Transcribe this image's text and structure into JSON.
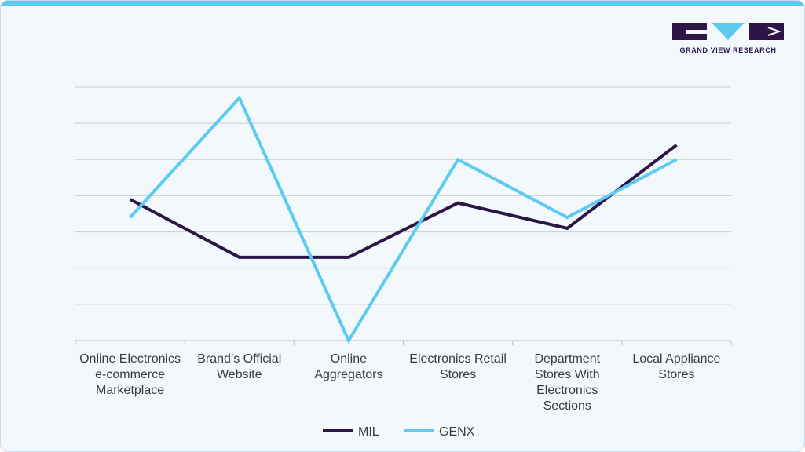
{
  "brand": {
    "name": "GRAND VIEW RESEARCH",
    "colors": {
      "accent": "#5ccbf2",
      "dark": "#2a1a45"
    }
  },
  "chart_data": {
    "type": "line",
    "title": "",
    "xlabel": "",
    "ylabel": "",
    "ylim": [
      0,
      7
    ],
    "grid": true,
    "legend_position": "bottom-center",
    "categories": [
      [
        "Online Electronics",
        "e-commerce",
        "Marketplace"
      ],
      [
        "Brand’s Official",
        "Website"
      ],
      [
        "Online",
        "Aggregators"
      ],
      [
        "Electronics Retail",
        "Stores"
      ],
      [
        "Department",
        "Stores With",
        "Electronics",
        "Sections"
      ],
      [
        "Local Appliance",
        "Stores"
      ]
    ],
    "series": [
      {
        "name": "MIL",
        "color": "#2e1547",
        "values": [
          3.9,
          2.3,
          2.3,
          3.8,
          3.1,
          5.4
        ]
      },
      {
        "name": "GENX",
        "color": "#5ccbf2",
        "values": [
          3.4,
          6.7,
          0.0,
          5.0,
          3.4,
          5.0
        ]
      }
    ]
  }
}
